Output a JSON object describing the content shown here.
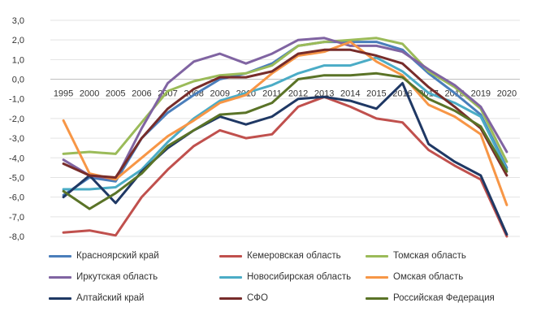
{
  "chart_data": {
    "type": "line",
    "title": "",
    "xlabel": "",
    "ylabel": "",
    "ylim": [
      -8.0,
      3.0
    ],
    "yticks": [
      "3,0",
      "2,0",
      "1,0",
      "0,0",
      "-1,0",
      "-2,0",
      "-3,0",
      "-4,0",
      "-5,0",
      "-6,0",
      "-7,0",
      "-8,0"
    ],
    "categories": [
      "1995",
      "2000",
      "2005",
      "2006",
      "2007",
      "2008",
      "2009",
      "2010",
      "2011",
      "2012",
      "2013",
      "2014",
      "2015",
      "2016",
      "2017",
      "2018",
      "2019",
      "2020"
    ],
    "grid": true,
    "legend_position": "bottom",
    "series": [
      {
        "name": "Красноярский край",
        "color": "#4a7ebb",
        "values": [
          -5.9,
          -5.0,
          -5.2,
          -3.0,
          -1.7,
          -0.8,
          0.0,
          0.3,
          0.8,
          1.7,
          1.9,
          1.9,
          1.9,
          1.5,
          0.3,
          -0.7,
          -1.8,
          -4.5
        ]
      },
      {
        "name": "Кемеровская область",
        "color": "#c0504d",
        "values": [
          -7.8,
          -7.7,
          -7.95,
          -6.0,
          -4.6,
          -3.4,
          -2.6,
          -3.0,
          -2.8,
          -1.4,
          -0.9,
          -1.4,
          -2.0,
          -2.2,
          -3.6,
          -4.4,
          -5.1,
          -8.0
        ]
      },
      {
        "name": "Томская область",
        "color": "#9bbb59",
        "values": [
          -3.8,
          -3.7,
          -3.8,
          -2.2,
          -0.6,
          -0.1,
          0.2,
          0.3,
          0.7,
          1.7,
          1.9,
          2.0,
          2.1,
          1.8,
          0.4,
          -0.4,
          -1.5,
          -4.2
        ]
      },
      {
        "name": "Иркутская область",
        "color": "#8064a2",
        "values": [
          -4.1,
          -4.9,
          -5.1,
          -2.5,
          -0.2,
          0.9,
          1.3,
          0.8,
          1.3,
          2.0,
          2.1,
          1.7,
          1.7,
          1.4,
          0.5,
          -0.3,
          -1.4,
          -3.7
        ]
      },
      {
        "name": "Новосибирская область",
        "color": "#4bacc6",
        "values": [
          -5.6,
          -5.6,
          -5.5,
          -4.6,
          -3.2,
          -2.0,
          -1.1,
          -0.7,
          -0.3,
          0.3,
          0.7,
          0.7,
          1.1,
          0.4,
          -0.7,
          -1.2,
          -1.9,
          -4.6
        ]
      },
      {
        "name": "Омская область",
        "color": "#f79646",
        "values": [
          -2.1,
          -4.8,
          -5.1,
          -4.0,
          -2.9,
          -2.1,
          -1.2,
          -0.8,
          0.3,
          1.2,
          1.4,
          1.9,
          0.9,
          0.2,
          -1.3,
          -1.9,
          -2.8,
          -6.4
        ]
      },
      {
        "name": "Алтайский край",
        "color": "#1f3864",
        "values": [
          -6.0,
          -4.9,
          -6.3,
          -4.7,
          -3.5,
          -2.6,
          -1.9,
          -2.3,
          -1.9,
          -1.0,
          -0.9,
          -1.1,
          -1.5,
          -0.2,
          -3.3,
          -4.2,
          -4.9,
          -7.9
        ]
      },
      {
        "name": "СФО",
        "color": "#772c2a",
        "values": [
          -4.3,
          -4.9,
          -5.0,
          -3.0,
          -1.5,
          -0.5,
          0.1,
          0.1,
          0.4,
          1.3,
          1.5,
          1.5,
          1.2,
          0.8,
          -0.4,
          -1.4,
          -2.5,
          -4.9
        ]
      },
      {
        "name": "Российская Федерация",
        "color": "#5a7327",
        "values": [
          -5.7,
          -6.6,
          -5.8,
          -4.8,
          -3.4,
          -2.6,
          -1.8,
          -1.7,
          -1.2,
          0.0,
          0.2,
          0.2,
          0.3,
          0.1,
          -1.0,
          -1.6,
          -2.4,
          -4.7
        ]
      }
    ]
  }
}
